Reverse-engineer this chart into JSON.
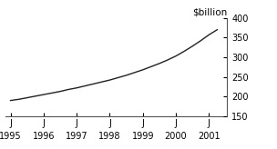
{
  "x": [
    1995.0,
    1995.25,
    1995.5,
    1995.75,
    1996.0,
    1996.25,
    1996.5,
    1996.75,
    1997.0,
    1997.25,
    1997.5,
    1997.75,
    1998.0,
    1998.25,
    1998.5,
    1998.75,
    1999.0,
    1999.25,
    1999.5,
    1999.75,
    2000.0,
    2000.25,
    2000.5,
    2000.75,
    2001.0,
    2001.25
  ],
  "y": [
    190,
    193,
    197,
    201,
    205,
    209,
    213,
    218,
    222,
    227,
    232,
    237,
    242,
    248,
    254,
    261,
    268,
    276,
    284,
    293,
    303,
    315,
    328,
    342,
    357,
    370
  ],
  "xlim": [
    1994.85,
    2001.55
  ],
  "ylim": [
    150,
    400
  ],
  "yticks": [
    150,
    200,
    250,
    300,
    350,
    400
  ],
  "xticks": [
    1995,
    1996,
    1997,
    1998,
    1999,
    2000,
    2001
  ],
  "ylabel": "$billion",
  "line_color": "#222222",
  "line_width": 1.0,
  "background_color": "#ffffff",
  "tick_label_fontsize": 7.0,
  "ylabel_fontsize": 7.5
}
